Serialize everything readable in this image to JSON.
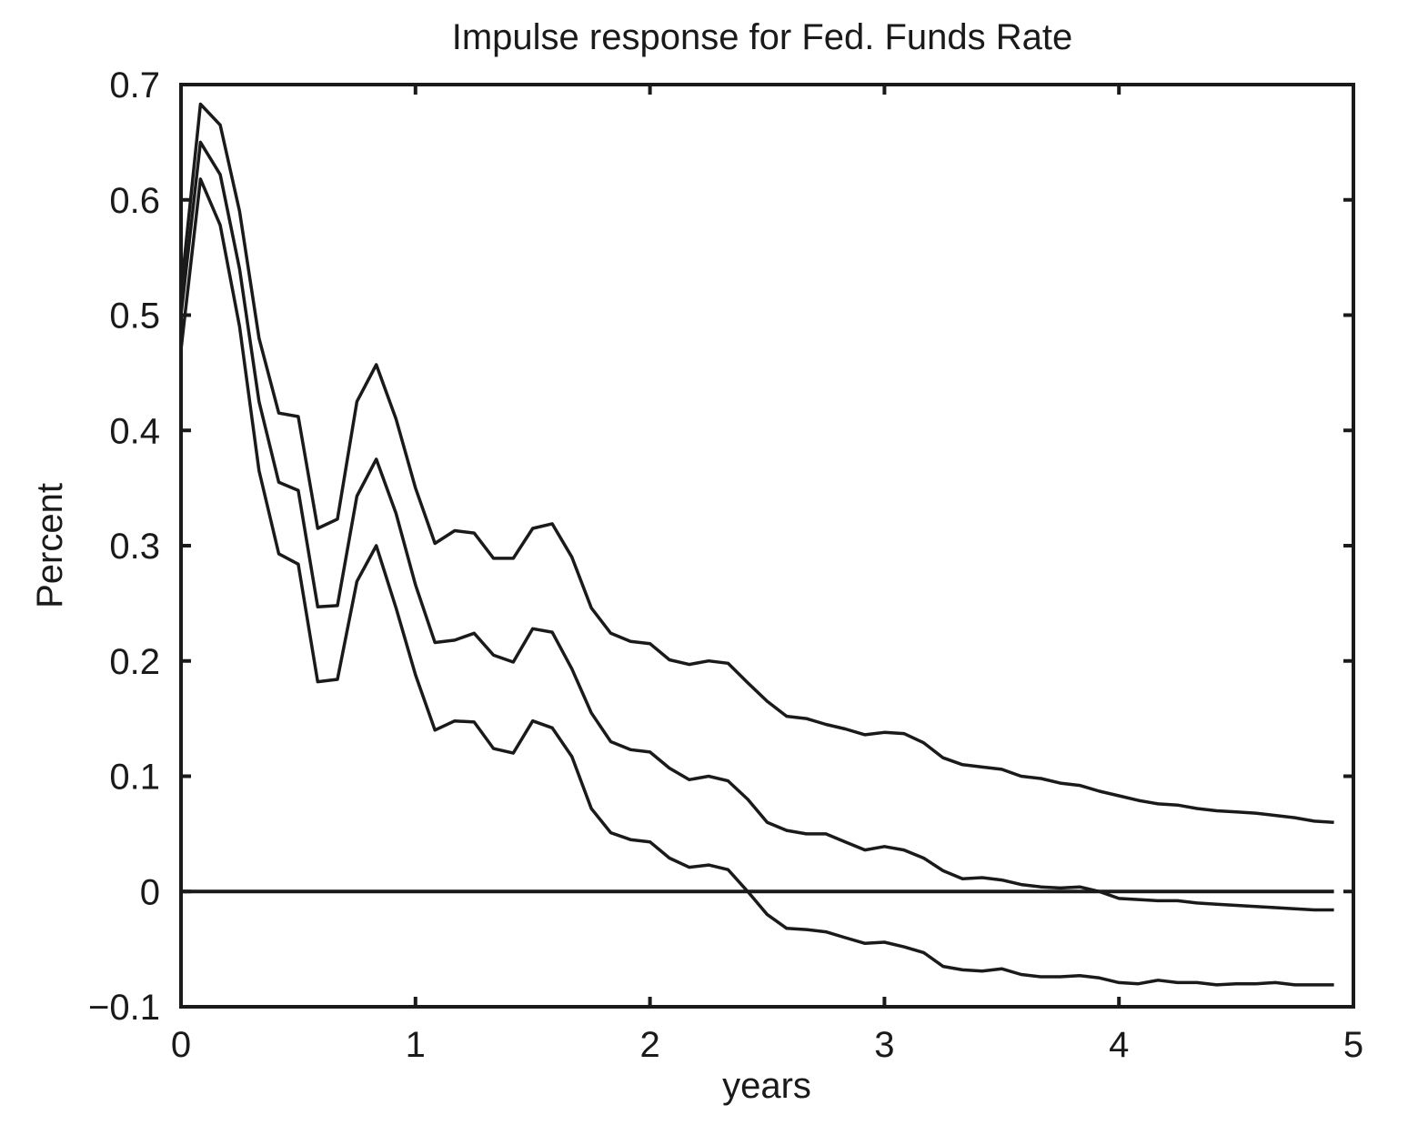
{
  "chart_data": {
    "type": "line",
    "title": "Impulse response for Fed. Funds Rate",
    "xlabel": "years",
    "ylabel": "Percent",
    "xlim": [
      0,
      5
    ],
    "ylim": [
      -0.1,
      0.7
    ],
    "xticks": [
      0,
      1,
      2,
      3,
      4,
      5
    ],
    "xtick_labels": [
      "0",
      "1",
      "2",
      "3",
      "4",
      "5"
    ],
    "yticks": [
      -0.1,
      0,
      0.1,
      0.2,
      0.3,
      0.4,
      0.5,
      0.6,
      0.7
    ],
    "ytick_labels": [
      "−0.1",
      "0",
      "0.1",
      "0.2",
      "0.3",
      "0.4",
      "0.5",
      "0.6",
      "0.7"
    ],
    "grid": false,
    "x": [
      0,
      0.083,
      0.167,
      0.25,
      0.333,
      0.417,
      0.5,
      0.583,
      0.667,
      0.75,
      0.833,
      0.917,
      1.0,
      1.083,
      1.167,
      1.25,
      1.333,
      1.417,
      1.5,
      1.583,
      1.667,
      1.75,
      1.833,
      1.917,
      2.0,
      2.083,
      2.167,
      2.25,
      2.333,
      2.417,
      2.5,
      2.583,
      2.667,
      2.75,
      2.833,
      2.917,
      3.0,
      3.083,
      3.167,
      3.25,
      3.333,
      3.417,
      3.5,
      3.583,
      3.667,
      3.75,
      3.833,
      3.917,
      4.0,
      4.083,
      4.167,
      4.25,
      4.333,
      4.417,
      4.5,
      4.583,
      4.667,
      4.75,
      4.833,
      4.917
    ],
    "series": [
      {
        "values": [
          0.52,
          0.683,
          0.665,
          0.59,
          0.48,
          0.415,
          0.412,
          0.315,
          0.323,
          0.425,
          0.457,
          0.41,
          0.35,
          0.302,
          0.313,
          0.311,
          0.289,
          0.289,
          0.315,
          0.319,
          0.29,
          0.246,
          0.224,
          0.217,
          0.215,
          0.201,
          0.197,
          0.2,
          0.198,
          0.181,
          0.165,
          0.152,
          0.15,
          0.145,
          0.141,
          0.136,
          0.138,
          0.137,
          0.129,
          0.116,
          0.11,
          0.108,
          0.106,
          0.1,
          0.098,
          0.094,
          0.092,
          0.087,
          0.083,
          0.079,
          0.076,
          0.075,
          0.072,
          0.07,
          0.069,
          0.068,
          0.066,
          0.064,
          0.061,
          0.06
        ]
      },
      {
        "values": [
          0.5,
          0.65,
          0.622,
          0.54,
          0.425,
          0.355,
          0.348,
          0.247,
          0.248,
          0.343,
          0.375,
          0.328,
          0.266,
          0.216,
          0.218,
          0.224,
          0.205,
          0.199,
          0.228,
          0.225,
          0.193,
          0.155,
          0.13,
          0.123,
          0.121,
          0.107,
          0.097,
          0.1,
          0.096,
          0.08,
          0.06,
          0.053,
          0.05,
          0.05,
          0.043,
          0.036,
          0.039,
          0.036,
          0.029,
          0.018,
          0.011,
          0.012,
          0.01,
          0.006,
          0.004,
          0.003,
          0.004,
          0.0,
          -0.006,
          -0.007,
          -0.008,
          -0.008,
          -0.01,
          -0.011,
          -0.012,
          -0.013,
          -0.014,
          -0.015,
          -0.016,
          -0.016
        ]
      },
      {
        "values": [
          0.47,
          0.618,
          0.578,
          0.49,
          0.365,
          0.293,
          0.284,
          0.182,
          0.184,
          0.269,
          0.3,
          0.246,
          0.188,
          0.14,
          0.148,
          0.147,
          0.124,
          0.12,
          0.148,
          0.142,
          0.117,
          0.072,
          0.051,
          0.045,
          0.043,
          0.029,
          0.021,
          0.023,
          0.019,
          0.0,
          -0.02,
          -0.032,
          -0.033,
          -0.035,
          -0.04,
          -0.045,
          -0.044,
          -0.048,
          -0.053,
          -0.065,
          -0.068,
          -0.069,
          -0.067,
          -0.072,
          -0.074,
          -0.074,
          -0.073,
          -0.075,
          -0.079,
          -0.08,
          -0.077,
          -0.079,
          -0.079,
          -0.081,
          -0.08,
          -0.08,
          -0.079,
          -0.081,
          -0.081,
          -0.081
        ]
      }
    ],
    "reference_lines": [
      {
        "y": 0
      }
    ]
  }
}
